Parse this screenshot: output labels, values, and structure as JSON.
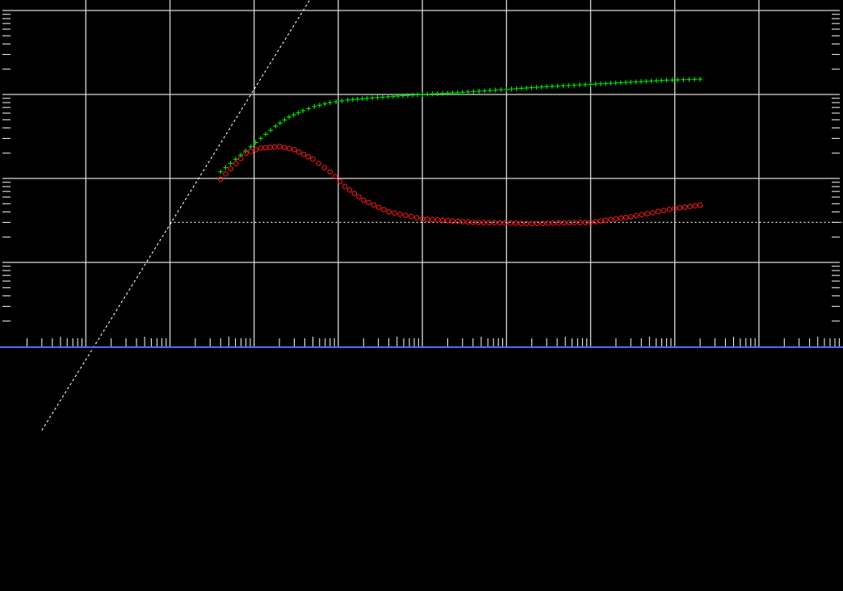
{
  "colors": {
    "background": "#000000",
    "grid": "#d9d9d9",
    "tick": "#ffffff",
    "reference_line": "#e6e6e6",
    "axis_baseline": "#4a6cff",
    "series_cross": "#00dd00",
    "series_circle": "#ff1a1a"
  },
  "chart_data": {
    "type": "scatter",
    "title": "",
    "xlabel": "",
    "ylabel": "",
    "x_scale": "log",
    "y_scale": "log",
    "grid": true,
    "legend": "none",
    "tick_labels": "none",
    "xlim": [
      0.1,
      1000000000
    ],
    "ylim": [
      0.01,
      10000
    ],
    "x_major_ticks": [
      1,
      10,
      100,
      1000,
      10000,
      100000,
      1000000,
      10000000,
      100000000
    ],
    "y_major_ticks": [
      1,
      10,
      100,
      1000
    ],
    "reference_lines": [
      {
        "kind": "diagonal",
        "style": "dotted",
        "x": [
          0.3,
          1600
        ],
        "y": [
          0.01,
          10000
        ]
      },
      {
        "kind": "horizontal",
        "style": "dotted",
        "y": 3.0,
        "x": [
          10,
          1000000000
        ]
      }
    ],
    "series": [
      {
        "marker": "cross",
        "color": "#00dd00",
        "points": [
          [
            40,
            12
          ],
          [
            120,
            30
          ],
          [
            180,
            42
          ],
          [
            260,
            54
          ],
          [
            380,
            64
          ],
          [
            520,
            72
          ],
          [
            800,
            80
          ],
          [
            1300,
            86
          ],
          [
            2200,
            90
          ],
          [
            4500,
            95
          ],
          [
            10000,
            100
          ],
          [
            30000,
            106
          ],
          [
            100000,
            115
          ],
          [
            300000,
            124
          ],
          [
            1000000,
            132
          ],
          [
            3000000,
            140
          ],
          [
            8000000,
            148
          ],
          [
            20000000,
            152
          ]
        ]
      },
      {
        "marker": "circle",
        "color": "#ff1a1a",
        "points": [
          [
            40,
            9.8
          ],
          [
            80,
            20
          ],
          [
            120,
            23
          ],
          [
            200,
            24
          ],
          [
            300,
            22
          ],
          [
            500,
            17
          ],
          [
            800,
            12
          ],
          [
            1200,
            8
          ],
          [
            2000,
            5.5
          ],
          [
            4000,
            4
          ],
          [
            10000,
            3.3
          ],
          [
            40000,
            3.0
          ],
          [
            200000,
            2.9
          ],
          [
            1000000,
            3.0
          ],
          [
            3000000,
            3.5
          ],
          [
            10000000,
            4.4
          ],
          [
            20000000,
            4.8
          ]
        ]
      }
    ]
  }
}
